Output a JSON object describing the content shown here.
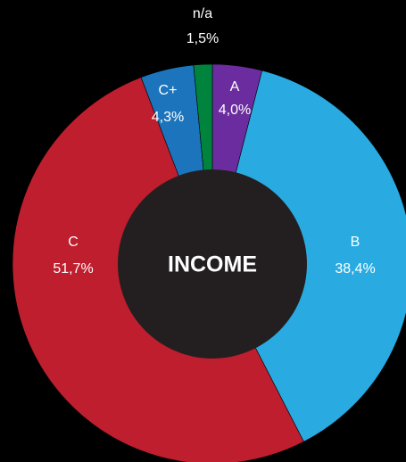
{
  "chart_data": {
    "type": "pie",
    "title": "INCOME",
    "categories": [
      "A",
      "B",
      "C",
      "C+",
      "n/a"
    ],
    "values": [
      4.0,
      38.4,
      51.7,
      4.3,
      1.5
    ],
    "value_labels": [
      "4,0%",
      "38,4%",
      "51,7%",
      "4,3%",
      "1,5%"
    ],
    "colors": [
      "#6a2c9e",
      "#29abe2",
      "#be1e2d",
      "#1c75bc",
      "#00843d"
    ],
    "donut": true
  }
}
